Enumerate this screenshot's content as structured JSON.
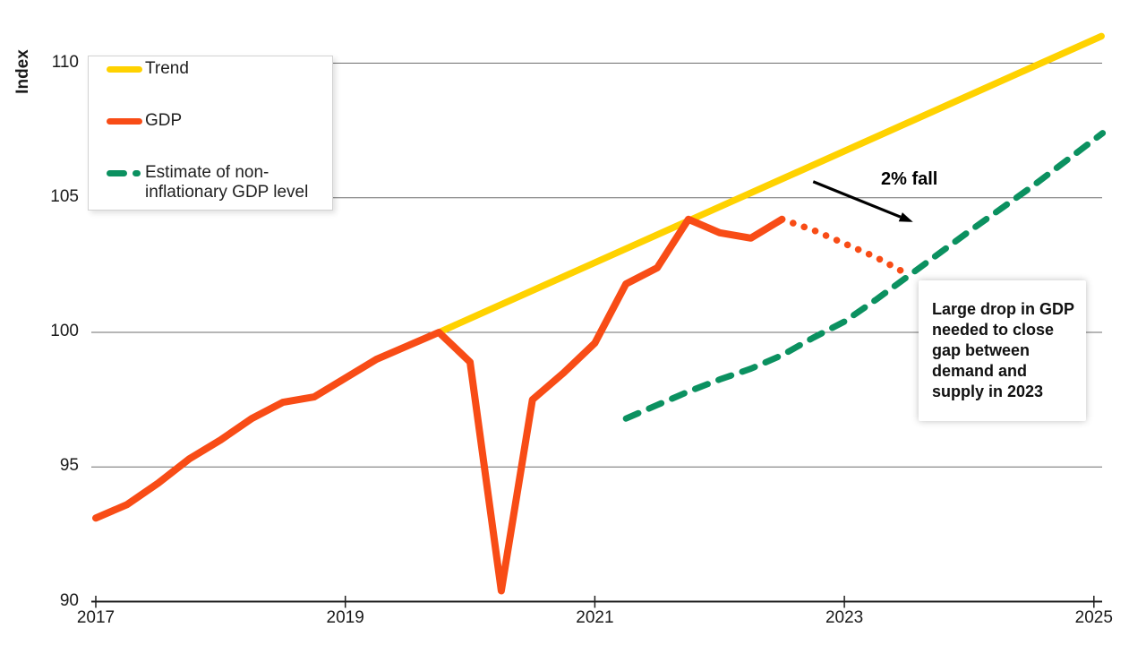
{
  "page": {
    "background": "#ffffff"
  },
  "chart_data": {
    "type": "line",
    "title": "",
    "y_axis_title": "Index",
    "xlabel": "",
    "ylabel": "Index",
    "xlim": [
      2017,
      2025.1
    ],
    "ylim": [
      90,
      111.2
    ],
    "grid": "horizontal",
    "legend_position": "top-left",
    "x_ticks": [
      "2017",
      "2019",
      "2021",
      "2023",
      "2025"
    ],
    "x_tick_values": [
      2017,
      2019,
      2021,
      2023,
      2025
    ],
    "y_ticks": [
      "90",
      "95",
      "100",
      "105",
      "110"
    ],
    "y_tick_values": [
      90,
      95,
      100,
      105,
      110
    ],
    "colors": {
      "trend": "#FFD200",
      "gdp": "#F84C16",
      "estimate": "#0B9160",
      "gridline": "#6E6E6E",
      "axis": "#1F1F1F",
      "annotation": "#000000"
    },
    "series": [
      {
        "id": "trend",
        "name": "Trend",
        "color": "#FFD200",
        "style": "solid",
        "width": 7.5,
        "points": [
          [
            2019.75,
            100.0
          ],
          [
            2025.06,
            111.0
          ]
        ]
      },
      {
        "id": "estimate",
        "name": "Estimate of non-inflationary GDP level",
        "color": "#0B9160",
        "style": "dashed",
        "width": 7,
        "points": [
          [
            2021.25,
            96.8
          ],
          [
            2021.5,
            97.3
          ],
          [
            2021.75,
            97.8
          ],
          [
            2022.0,
            98.25
          ],
          [
            2022.25,
            98.65
          ],
          [
            2022.5,
            99.15
          ],
          [
            2022.75,
            99.8
          ],
          [
            2023.0,
            100.4
          ],
          [
            2023.25,
            101.2
          ],
          [
            2023.5,
            102.05
          ],
          [
            2024.0,
            103.75
          ],
          [
            2024.5,
            105.4
          ],
          [
            2025.07,
            107.4
          ]
        ]
      },
      {
        "id": "gdp",
        "name": "GDP",
        "color": "#F84C16",
        "style": "solid",
        "width": 8,
        "points": [
          [
            2017.0,
            93.1
          ],
          [
            2017.25,
            93.6
          ],
          [
            2017.5,
            94.4
          ],
          [
            2017.75,
            95.3
          ],
          [
            2018.0,
            96.0
          ],
          [
            2018.25,
            96.8
          ],
          [
            2018.5,
            97.4
          ],
          [
            2018.75,
            97.6
          ],
          [
            2019.0,
            98.3
          ],
          [
            2019.25,
            99.0
          ],
          [
            2019.5,
            99.5
          ],
          [
            2019.75,
            100.0
          ],
          [
            2020.0,
            98.9
          ],
          [
            2020.25,
            90.4
          ],
          [
            2020.5,
            97.5
          ],
          [
            2020.75,
            98.5
          ],
          [
            2021.0,
            99.6
          ],
          [
            2021.25,
            101.8
          ],
          [
            2021.5,
            102.4
          ],
          [
            2021.75,
            104.2
          ],
          [
            2022.0,
            103.7
          ],
          [
            2022.25,
            103.5
          ],
          [
            2022.5,
            104.2
          ]
        ]
      },
      {
        "id": "gdp-dotted",
        "name": "GDP projection (dotted)",
        "color": "#F84C16",
        "style": "dotted",
        "width": 7.5,
        "points": [
          [
            2022.5,
            104.2
          ],
          [
            2022.75,
            103.8
          ],
          [
            2023.0,
            103.3
          ],
          [
            2023.25,
            102.8
          ],
          [
            2023.53,
            102.1
          ]
        ]
      }
    ],
    "annotations": [
      {
        "type": "text",
        "text": "2% fall"
      },
      {
        "type": "arrow",
        "from": [
          2022.75,
          105.6
        ],
        "to": [
          2023.55,
          104.1
        ]
      },
      {
        "type": "textbox",
        "text": "Large drop in GDP\nneeded to close\ngap between\ndemand and\nsupply in 2023"
      }
    ]
  },
  "legend": {
    "items": [
      {
        "label": "Trend"
      },
      {
        "label": "GDP"
      },
      {
        "label": "Estimate of non-\ninflationary GDP level"
      }
    ]
  }
}
